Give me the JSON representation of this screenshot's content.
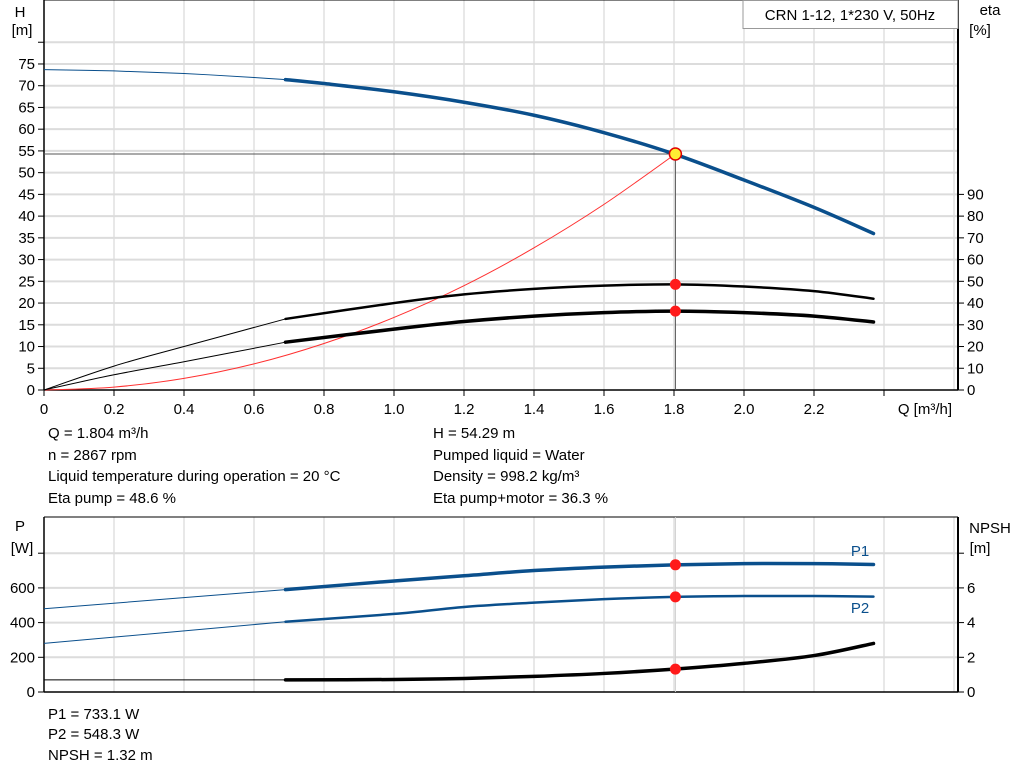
{
  "chart_data": [
    {
      "type": "line",
      "title": "CRN 1-12, 1*230 V, 50Hz",
      "xlabel": "Q [m³/h]",
      "ylabel_left": [
        "H",
        "[m]"
      ],
      "ylabel_right": [
        "eta",
        "[%]"
      ],
      "x_ticks": [
        "0",
        "0.2",
        "0.4",
        "0.6",
        "0.8",
        "1.0",
        "1.2",
        "1.4",
        "1.6",
        "1.8",
        "2.0",
        "2.2"
      ],
      "y_left_ticks": [
        "0",
        "5",
        "10",
        "15",
        "20",
        "25",
        "30",
        "35",
        "40",
        "45",
        "50",
        "55",
        "60",
        "65",
        "70",
        "75"
      ],
      "y_right_ticks": [
        "0",
        "10",
        "20",
        "30",
        "40",
        "50",
        "60",
        "70",
        "80",
        "90"
      ],
      "xlim": [
        0,
        2.6
      ],
      "ylim_left": [
        0,
        80
      ],
      "ylim_right": [
        0,
        160
      ],
      "grid": true,
      "series": [
        {
          "key": "H",
          "axis": "left",
          "color": "#0a4f8c",
          "x": [
            0,
            0.2,
            0.4,
            0.6,
            0.69,
            0.8,
            1.0,
            1.2,
            1.4,
            1.6,
            1.8,
            2.0,
            2.2,
            2.37
          ],
          "y": [
            73.7,
            73.4,
            72.8,
            71.9,
            71.4,
            70.5,
            68.6,
            66.2,
            63.2,
            59.2,
            54.3,
            48.3,
            42,
            36
          ]
        },
        {
          "key": "eta_pump",
          "axis": "right",
          "color": "#000000",
          "x": [
            0,
            0.2,
            0.4,
            0.69,
            1.0,
            1.2,
            1.4,
            1.6,
            1.8,
            2.0,
            2.2,
            2.37
          ],
          "y": [
            0,
            11,
            20,
            32.7,
            40,
            44,
            46.5,
            48,
            48.6,
            47.6,
            45.5,
            42
          ]
        },
        {
          "key": "eta_pump_motor",
          "axis": "right",
          "color": "#000000",
          "x": [
            0,
            0.2,
            0.4,
            0.69,
            1.0,
            1.2,
            1.4,
            1.6,
            1.8,
            2.0,
            2.2,
            2.37
          ],
          "y": [
            0,
            7,
            13,
            22,
            28,
            31.5,
            34,
            35.6,
            36.3,
            35.6,
            34,
            31.3
          ]
        },
        {
          "key": "system_curve",
          "axis": "left",
          "color": "#ff3030",
          "x": [
            0,
            0.2,
            0.4,
            0.6,
            0.8,
            1.0,
            1.2,
            1.4,
            1.6,
            1.804
          ],
          "y": [
            0,
            0.67,
            2.67,
            6.0,
            10.7,
            16.7,
            24.0,
            32.7,
            42.7,
            54.29
          ]
        }
      ],
      "operating_point": {
        "Q": 1.804,
        "H": 54.29,
        "eta_pump": 48.6,
        "eta_pump_motor": 36.3
      },
      "duty_start_Q": 0.69
    },
    {
      "type": "line",
      "ylabel_left": [
        "P",
        "[W]"
      ],
      "ylabel_right": [
        "NPSH",
        "[m]"
      ],
      "y_left_ticks": [
        "0",
        "200",
        "400",
        "600"
      ],
      "y_right_ticks": [
        "0",
        "2",
        "4",
        "6"
      ],
      "ylim_left": [
        0,
        1000
      ],
      "ylim_right": [
        0,
        10
      ],
      "grid": true,
      "series": [
        {
          "name": "P1",
          "axis": "left",
          "color": "#0a4f8c",
          "x": [
            0,
            0.69,
            1.0,
            1.2,
            1.4,
            1.6,
            1.8,
            2.0,
            2.2,
            2.37
          ],
          "y": [
            480,
            590,
            640,
            670,
            700,
            720,
            733,
            740,
            740,
            735
          ]
        },
        {
          "name": "P2",
          "axis": "left",
          "color": "#0a4f8c",
          "x": [
            0,
            0.69,
            1.0,
            1.2,
            1.4,
            1.6,
            1.8,
            2.0,
            2.2,
            2.37
          ],
          "y": [
            280,
            405,
            450,
            490,
            515,
            535,
            548,
            553,
            553,
            550
          ]
        },
        {
          "key": "NPSH",
          "axis": "right",
          "color": "#000000",
          "x": [
            0,
            0.69,
            1.0,
            1.2,
            1.4,
            1.6,
            1.8,
            2.0,
            2.2,
            2.37
          ],
          "y": [
            0.7,
            0.7,
            0.72,
            0.78,
            0.9,
            1.07,
            1.32,
            1.65,
            2.1,
            2.8
          ]
        }
      ],
      "operating_point": {
        "Q": 1.804,
        "P1": 733.1,
        "P2": 548.3,
        "NPSH": 1.32
      }
    }
  ],
  "info": {
    "q": "Q = 1.804 m³/h",
    "n": "n = 2867 rpm",
    "temp": "Liquid temperature during operation = 20 °C",
    "eta_pump": "Eta pump = 48.6 %",
    "h": "H = 54.29 m",
    "liquid": "Pumped liquid = Water",
    "density": "Density = 998.2 kg/m³",
    "eta_pm": "Eta pump+motor = 36.3 %",
    "p1": "P1 = 733.1 W",
    "p2": "P2 = 548.3 W",
    "npsh": "NPSH = 1.32 m"
  }
}
